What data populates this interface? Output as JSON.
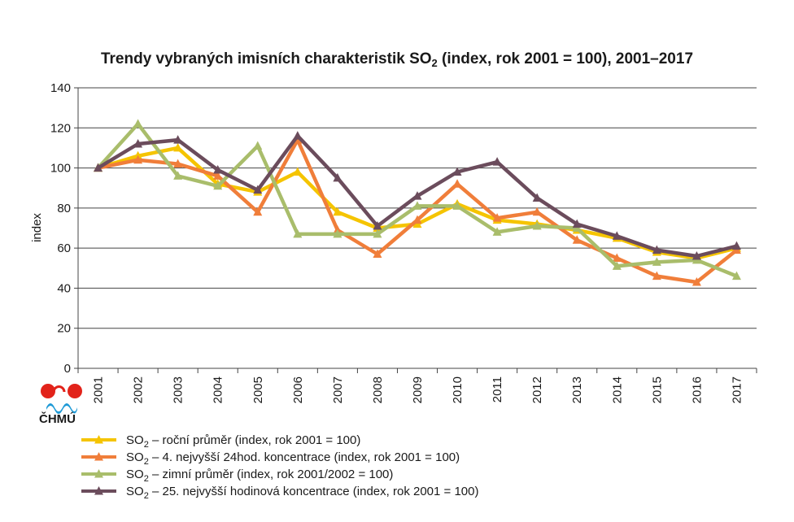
{
  "chart_data": {
    "type": "line",
    "title_main": "Trendy vybraných imisních charakteristik SO",
    "title_sub": "2",
    "title_rest": " (index, rok 2001 = 100), 2001–2017",
    "ylabel": "index",
    "xlabel": "",
    "ylim": [
      0,
      140
    ],
    "yticks": [
      "0",
      "20",
      "40",
      "60",
      "80",
      "100",
      "120",
      "140"
    ],
    "categories": [
      "2001",
      "2002",
      "2003",
      "2004",
      "2005",
      "2006",
      "2007",
      "2008",
      "2009",
      "2010",
      "2011",
      "2012",
      "2013",
      "2014",
      "2015",
      "2016",
      "2017"
    ],
    "grid": "horizontal",
    "legend_position": "bottom",
    "series": [
      {
        "label_main": "SO",
        "label_sub": "2",
        "label_rest": "  – roční průměr (index, rok 2001 = 100)",
        "color": "#f5c400",
        "values": [
          100,
          106,
          110,
          92,
          88,
          98,
          78,
          70,
          72,
          82,
          74,
          72,
          69,
          65,
          58,
          55,
          60
        ]
      },
      {
        "label_main": "SO",
        "label_sub": "2",
        "label_rest": "  – 4. nejvyšší 24hod. koncentrace (index, rok 2001 = 100)",
        "color": "#f07e3a",
        "values": [
          100,
          104,
          102,
          96,
          78,
          114,
          69,
          57,
          74,
          92,
          75,
          78,
          64,
          55,
          46,
          43,
          59
        ]
      },
      {
        "label_main": "SO",
        "label_sub": "2",
        "label_rest": "  – zimní průměr  (index, rok 2001/2002 = 100)",
        "color": "#a9bd6b",
        "values": [
          100,
          122,
          96,
          91,
          111,
          67,
          67,
          67,
          81,
          81,
          68,
          71,
          70,
          51,
          53,
          54,
          46
        ]
      },
      {
        "label_main": "SO",
        "label_sub": "2",
        "label_rest": "  – 25. nejvyšší hodinová koncentrace (index, rok 2001 = 100)",
        "color": "#6b4c5c",
        "values": [
          100,
          112,
          114,
          99,
          89,
          116,
          95,
          71,
          86,
          98,
          103,
          85,
          72,
          66,
          59,
          56,
          61
        ]
      }
    ]
  },
  "logo": {
    "text": "ČHMÚ",
    "colors": {
      "red": "#e2231a",
      "blue": "#1f9ad6"
    }
  }
}
